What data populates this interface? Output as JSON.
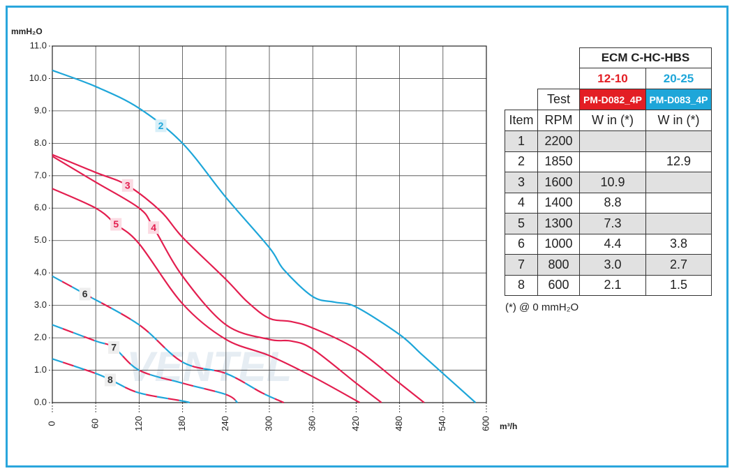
{
  "chart_data": {
    "type": "line",
    "y_label": "mmH₂O",
    "x_label": "m³/h",
    "xlim": [
      0,
      600
    ],
    "ylim": [
      0,
      11
    ],
    "xticks": [
      0,
      60,
      120,
      180,
      240,
      300,
      360,
      420,
      480,
      540,
      600
    ],
    "yticks": [
      {
        "value": 0,
        "label": "0.0"
      },
      {
        "value": 1,
        "label": "1.0"
      },
      {
        "value": 2,
        "label": "2.0"
      },
      {
        "value": 3,
        "label": "3.0"
      },
      {
        "value": 4,
        "label": "4.0"
      },
      {
        "value": 5,
        "label": "5.0"
      },
      {
        "value": 6,
        "label": "6.0"
      },
      {
        "value": 7,
        "label": "7.0"
      },
      {
        "value": 8,
        "label": "8.0"
      },
      {
        "value": 9,
        "label": "9.0"
      },
      {
        "value": 10,
        "label": "10.0"
      },
      {
        "value": 11,
        "label": "11.0"
      }
    ],
    "grid": true,
    "series": [
      {
        "name": "2",
        "colors": [
          "#1ea6d9"
        ],
        "dashed": false,
        "x": [
          0,
          60,
          120,
          180,
          240,
          300,
          320,
          360,
          390,
          420,
          480,
          510,
          540,
          585
        ],
        "values": [
          10.25,
          9.75,
          9.08,
          8.0,
          6.33,
          4.78,
          4.1,
          3.27,
          3.1,
          2.95,
          2.1,
          1.5,
          0.9,
          0
        ]
      },
      {
        "name": "3",
        "colors": [
          "#e31e4f"
        ],
        "dashed": false,
        "x": [
          0,
          60,
          104,
          150,
          180,
          240,
          270,
          300,
          330,
          360,
          420,
          480,
          514
        ],
        "values": [
          7.65,
          7.1,
          6.7,
          5.9,
          5.1,
          3.8,
          3.1,
          2.6,
          2.5,
          2.3,
          1.65,
          0.6,
          0
        ]
      },
      {
        "name": "4",
        "colors": [
          "#e31e4f"
        ],
        "dashed": false,
        "x": [
          0,
          60,
          120,
          140,
          180,
          240,
          300,
          330,
          360,
          420,
          455
        ],
        "values": [
          7.6,
          6.8,
          6.0,
          5.4,
          3.9,
          2.4,
          1.95,
          1.9,
          1.65,
          0.6,
          0
        ]
      },
      {
        "name": "5",
        "colors": [
          "#e31e4f"
        ],
        "dashed": false,
        "x": [
          0,
          60,
          88,
          120,
          180,
          240,
          300,
          360,
          425
        ],
        "values": [
          6.6,
          6.0,
          5.5,
          4.9,
          3.05,
          1.95,
          1.45,
          0.8,
          0
        ]
      },
      {
        "name": "6",
        "colors": [
          "#1ea6d9",
          "#e31e4f"
        ],
        "dashed": true,
        "x": [
          0,
          45,
          120,
          180,
          240,
          290,
          320
        ],
        "values": [
          3.9,
          3.35,
          2.4,
          1.25,
          0.9,
          0.3,
          0
        ]
      },
      {
        "name": "7",
        "colors": [
          "#1ea6d9",
          "#e31e4f"
        ],
        "dashed": true,
        "x": [
          0,
          60,
          85,
          120,
          180,
          240,
          256
        ],
        "values": [
          2.4,
          1.9,
          1.7,
          1.0,
          0.6,
          0.25,
          0
        ]
      },
      {
        "name": "8",
        "colors": [
          "#1ea6d9",
          "#e31e4f"
        ],
        "dashed": true,
        "x": [
          0,
          60,
          85,
          120,
          180,
          190
        ],
        "values": [
          1.35,
          0.9,
          0.65,
          0.3,
          0.05,
          0
        ]
      }
    ]
  },
  "table": {
    "title": "ECM C-HC-HBS",
    "test": "Test",
    "models": [
      {
        "code": "12-10",
        "name": "PM-D082_4P",
        "color": "#e31e24"
      },
      {
        "code": "20-25",
        "name": "PM-D083_4P",
        "color": "#1ea6d9"
      }
    ],
    "columns": [
      "Item",
      "RPM",
      "W in (*)",
      "W in (*)"
    ],
    "rows": [
      [
        "1",
        "2200",
        null,
        null
      ],
      [
        "2",
        "1850",
        null,
        "12.9"
      ],
      [
        "3",
        "1600",
        "10.9",
        null
      ],
      [
        "4",
        "1400",
        "8.8",
        null
      ],
      [
        "5",
        "1300",
        "7.3",
        null
      ],
      [
        "6",
        "1000",
        "4.4",
        "3.8"
      ],
      [
        "7",
        "800",
        "3.0",
        "2.7"
      ],
      [
        "8",
        "600",
        "2.1",
        "1.5"
      ]
    ],
    "footnote": "(*) @ 0 mmH₂O"
  },
  "watermark": "VENTEL"
}
